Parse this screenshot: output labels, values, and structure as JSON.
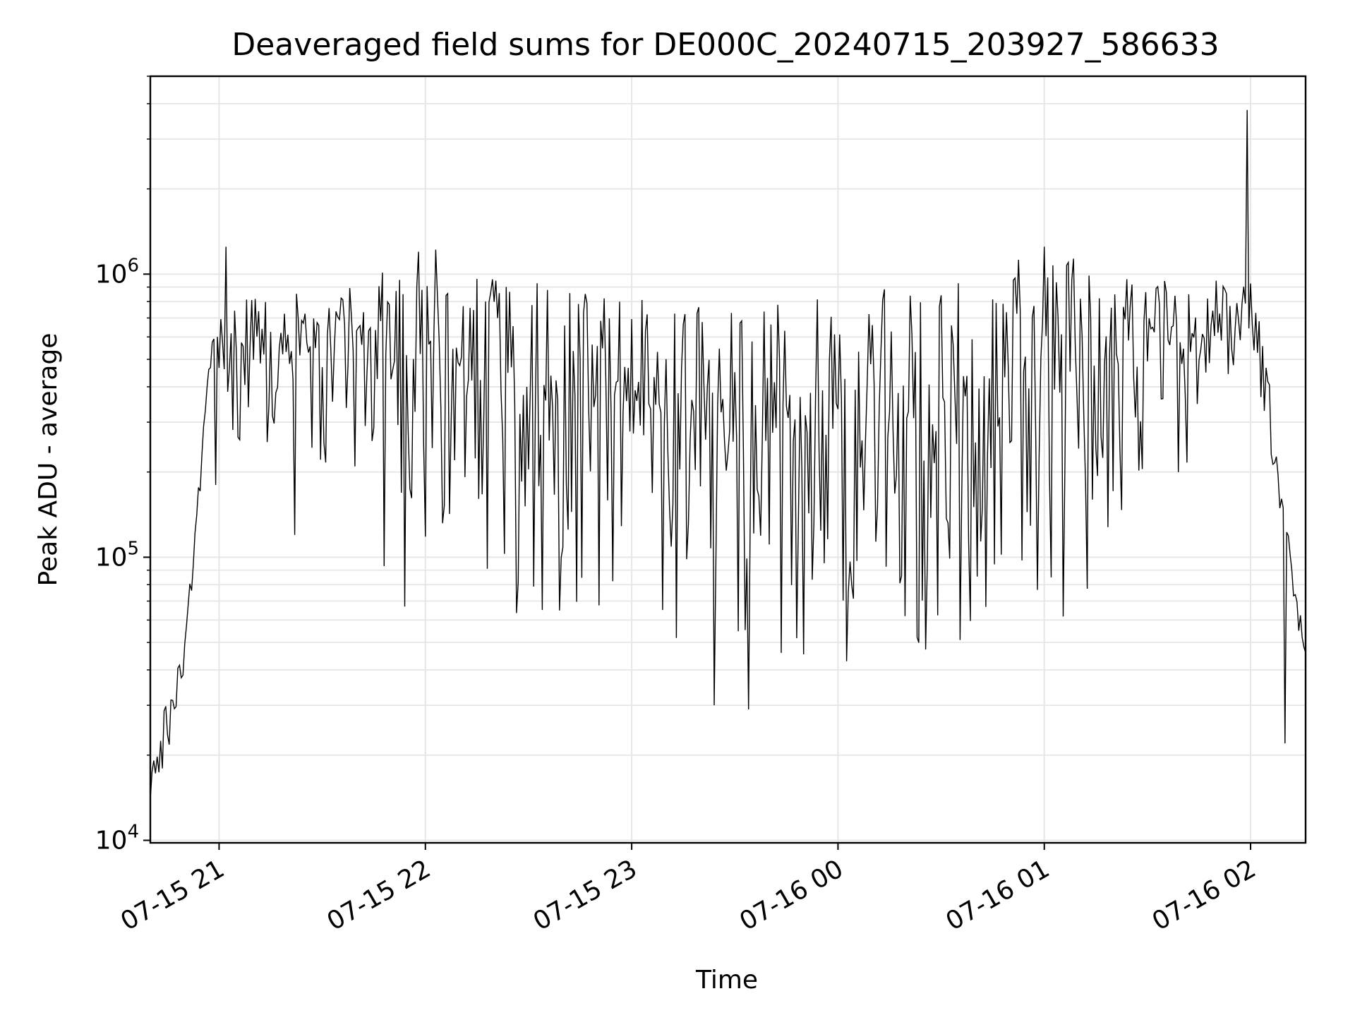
{
  "chart_data": {
    "type": "line",
    "title": "Deaveraged field sums for DE000C_20240715_203927_586633",
    "xlabel": "Time",
    "ylabel": "Peak ADU - average",
    "yscale": "log",
    "grid": true,
    "line_color": "#000000",
    "grid_color": "#e6e6e6",
    "x_tick_labels": [
      "07-15 21",
      "07-15 22",
      "07-15 23",
      "07-16 00",
      "07-16 01",
      "07-16 02"
    ],
    "x_ticks": [
      "2024-07-15 21:00",
      "2024-07-15 22:00",
      "2024-07-15 23:00",
      "2024-07-16 00:00",
      "2024-07-16 01:00",
      "2024-07-16 02:00"
    ],
    "y_tick_labels": [
      {
        "value": 10000,
        "base": "10",
        "exp": "4"
      },
      {
        "value": 100000,
        "base": "10",
        "exp": "5"
      },
      {
        "value": 1000000,
        "base": "10",
        "exp": "6"
      }
    ],
    "xlim": [
      "2024-07-15 20:40",
      "2024-07-16 02:16"
    ],
    "ylim": [
      9800,
      5000000
    ],
    "series": [
      {
        "x_start": "2024-07-15 20:40",
        "x_step_minutes": 2,
        "envelope": {
          "x": [
            "2024-07-15 20:40",
            "2024-07-15 20:50",
            "2024-07-15 20:55",
            "2024-07-15 20:58",
            "2024-07-15 21:05",
            "2024-07-15 21:30",
            "2024-07-15 21:45",
            "2024-07-15 22:00",
            "2024-07-15 22:15",
            "2024-07-15 22:30",
            "2024-07-15 23:00",
            "2024-07-15 23:30",
            "2024-07-16 00:00",
            "2024-07-16 00:30",
            "2024-07-16 00:45",
            "2024-07-16 01:00",
            "2024-07-16 01:15",
            "2024-07-16 01:30",
            "2024-07-16 01:45",
            "2024-07-16 02:00",
            "2024-07-16 02:04",
            "2024-07-16 02:08",
            "2024-07-16 02:16"
          ],
          "upper": [
            20000,
            50000,
            250000,
            650000,
            800000,
            950000,
            1000000,
            1100000,
            1050000,
            950000,
            850000,
            800000,
            850000,
            950000,
            1100000,
            1200000,
            1150000,
            1000000,
            950000,
            950000,
            700000,
            250000,
            50000
          ],
          "lower": [
            10000,
            40000,
            200000,
            550000,
            250000,
            220000,
            160000,
            110000,
            80000,
            55000,
            45000,
            40000,
            40000,
            45000,
            50000,
            50000,
            80000,
            150000,
            220000,
            650000,
            300000,
            120000,
            35000
          ]
        },
        "spikes": [
          {
            "x": "2024-07-15 20:59",
            "y": 180000
          },
          {
            "x": "2024-07-15 21:02",
            "y": 1250000
          },
          {
            "x": "2024-07-15 21:22",
            "y": 120000
          },
          {
            "x": "2024-07-15 21:48",
            "y": 93000
          },
          {
            "x": "2024-07-15 21:54",
            "y": 67000
          },
          {
            "x": "2024-07-15 21:58",
            "y": 1200000
          },
          {
            "x": "2024-07-15 22:03",
            "y": 1220000
          },
          {
            "x": "2024-07-15 23:24",
            "y": 30000
          },
          {
            "x": "2024-07-15 23:34",
            "y": 29000
          },
          {
            "x": "2024-07-16 01:00",
            "y": 1250000
          },
          {
            "x": "2024-07-16 01:59",
            "y": 3800000
          },
          {
            "x": "2024-07-16 02:10",
            "y": 22000
          }
        ]
      }
    ]
  }
}
